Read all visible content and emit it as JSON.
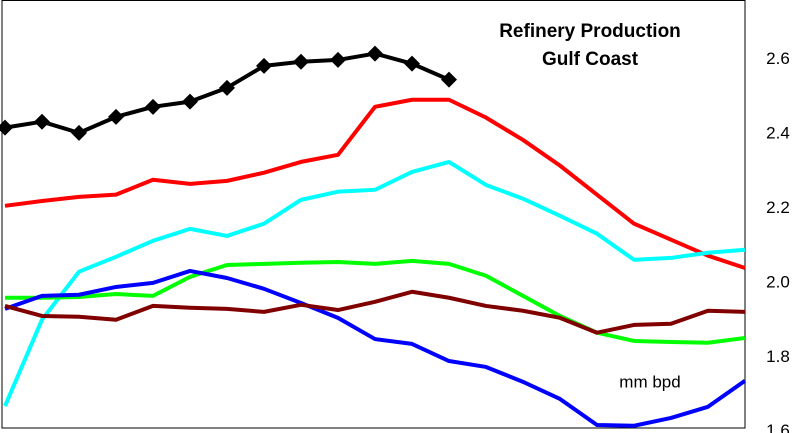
{
  "chart_data": {
    "type": "line",
    "title": [
      "Refinery Production",
      "Gulf Coast"
    ],
    "annotation": "mm  bpd",
    "x": [
      0,
      1,
      2,
      3,
      4,
      5,
      6,
      7,
      8,
      9,
      10,
      11,
      12,
      13,
      14,
      15,
      16,
      17,
      18,
      19,
      20
    ],
    "xlim": [
      0,
      20
    ],
    "ylim": [
      1.61,
      2.76
    ],
    "yticks": [
      {
        "value": 2.6,
        "label": "2.6"
      },
      {
        "value": 2.4,
        "label": "2.4"
      },
      {
        "value": 2.2,
        "label": "2.2"
      },
      {
        "value": 2,
        "label": "2.0"
      },
      {
        "value": 1.8,
        "label": "1.8"
      },
      {
        "value": 1.6,
        "label": "1.6"
      }
    ],
    "y_axis_side": "right",
    "grid": false,
    "series": [
      {
        "color": "#ff0000",
        "values": [
          2.207,
          2.22,
          2.231,
          2.237,
          2.277,
          2.266,
          2.274,
          2.296,
          2.325,
          2.344,
          2.473,
          2.492,
          2.492,
          2.444,
          2.384,
          2.315,
          2.237,
          2.159,
          2.116,
          2.073,
          2.04
        ]
      },
      {
        "color": "#00ffff",
        "values": [
          1.669,
          1.901,
          2.03,
          2.07,
          2.113,
          2.145,
          2.126,
          2.159,
          2.223,
          2.245,
          2.25,
          2.298,
          2.325,
          2.263,
          2.226,
          2.18,
          2.132,
          2.062,
          2.067,
          2.081,
          2.089
        ]
      },
      {
        "color": "#00ff00",
        "values": [
          1.96,
          1.96,
          1.962,
          1.97,
          1.965,
          2.016,
          2.048,
          2.051,
          2.054,
          2.056,
          2.051,
          2.059,
          2.051,
          2.019,
          1.965,
          1.911,
          1.866,
          1.844,
          1.841,
          1.839,
          1.852
        ]
      },
      {
        "color": "#0000ff",
        "values": [
          1.93,
          1.965,
          1.968,
          1.989,
          2.0,
          2.032,
          2.013,
          1.984,
          1.946,
          1.906,
          1.849,
          1.836,
          1.79,
          1.774,
          1.734,
          1.688,
          1.618,
          1.616,
          1.637,
          1.667,
          1.737
        ]
      },
      {
        "color": "#800000",
        "values": [
          1.938,
          1.911,
          1.909,
          1.901,
          1.938,
          1.933,
          1.93,
          1.922,
          1.941,
          1.927,
          1.949,
          1.976,
          1.96,
          1.938,
          1.925,
          1.906,
          1.866,
          1.887,
          1.89,
          1.925,
          1.922
        ]
      },
      {
        "color": "#000000",
        "marker": "diamond",
        "values": [
          2.417,
          2.433,
          2.403,
          2.446,
          2.473,
          2.487,
          2.524,
          2.583,
          2.594,
          2.599,
          2.616,
          2.589,
          2.546,
          null,
          null,
          null,
          null,
          null,
          null,
          null,
          null
        ]
      }
    ]
  }
}
